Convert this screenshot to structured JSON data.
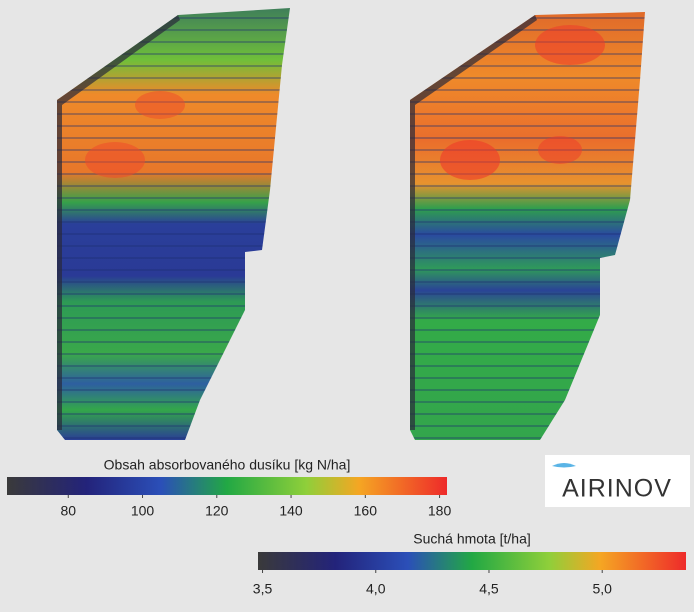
{
  "colorbars": [
    {
      "title": "Obsah absorbovaného dusíku [kg N/ha]",
      "range": [
        63.5,
        182
      ],
      "ticks": [
        80,
        100,
        120,
        140,
        160,
        180
      ]
    },
    {
      "title": "Suchá hmota [t/ha]",
      "range": [
        3.48,
        5.37
      ],
      "ticks": [
        {
          "value": 3.5,
          "label": "3,5"
        },
        {
          "value": 4.0,
          "label": "4,0"
        },
        {
          "value": 4.5,
          "label": "4,5"
        },
        {
          "value": 5.0,
          "label": "5,0"
        }
      ]
    }
  ],
  "logo": "AIRINOV"
}
